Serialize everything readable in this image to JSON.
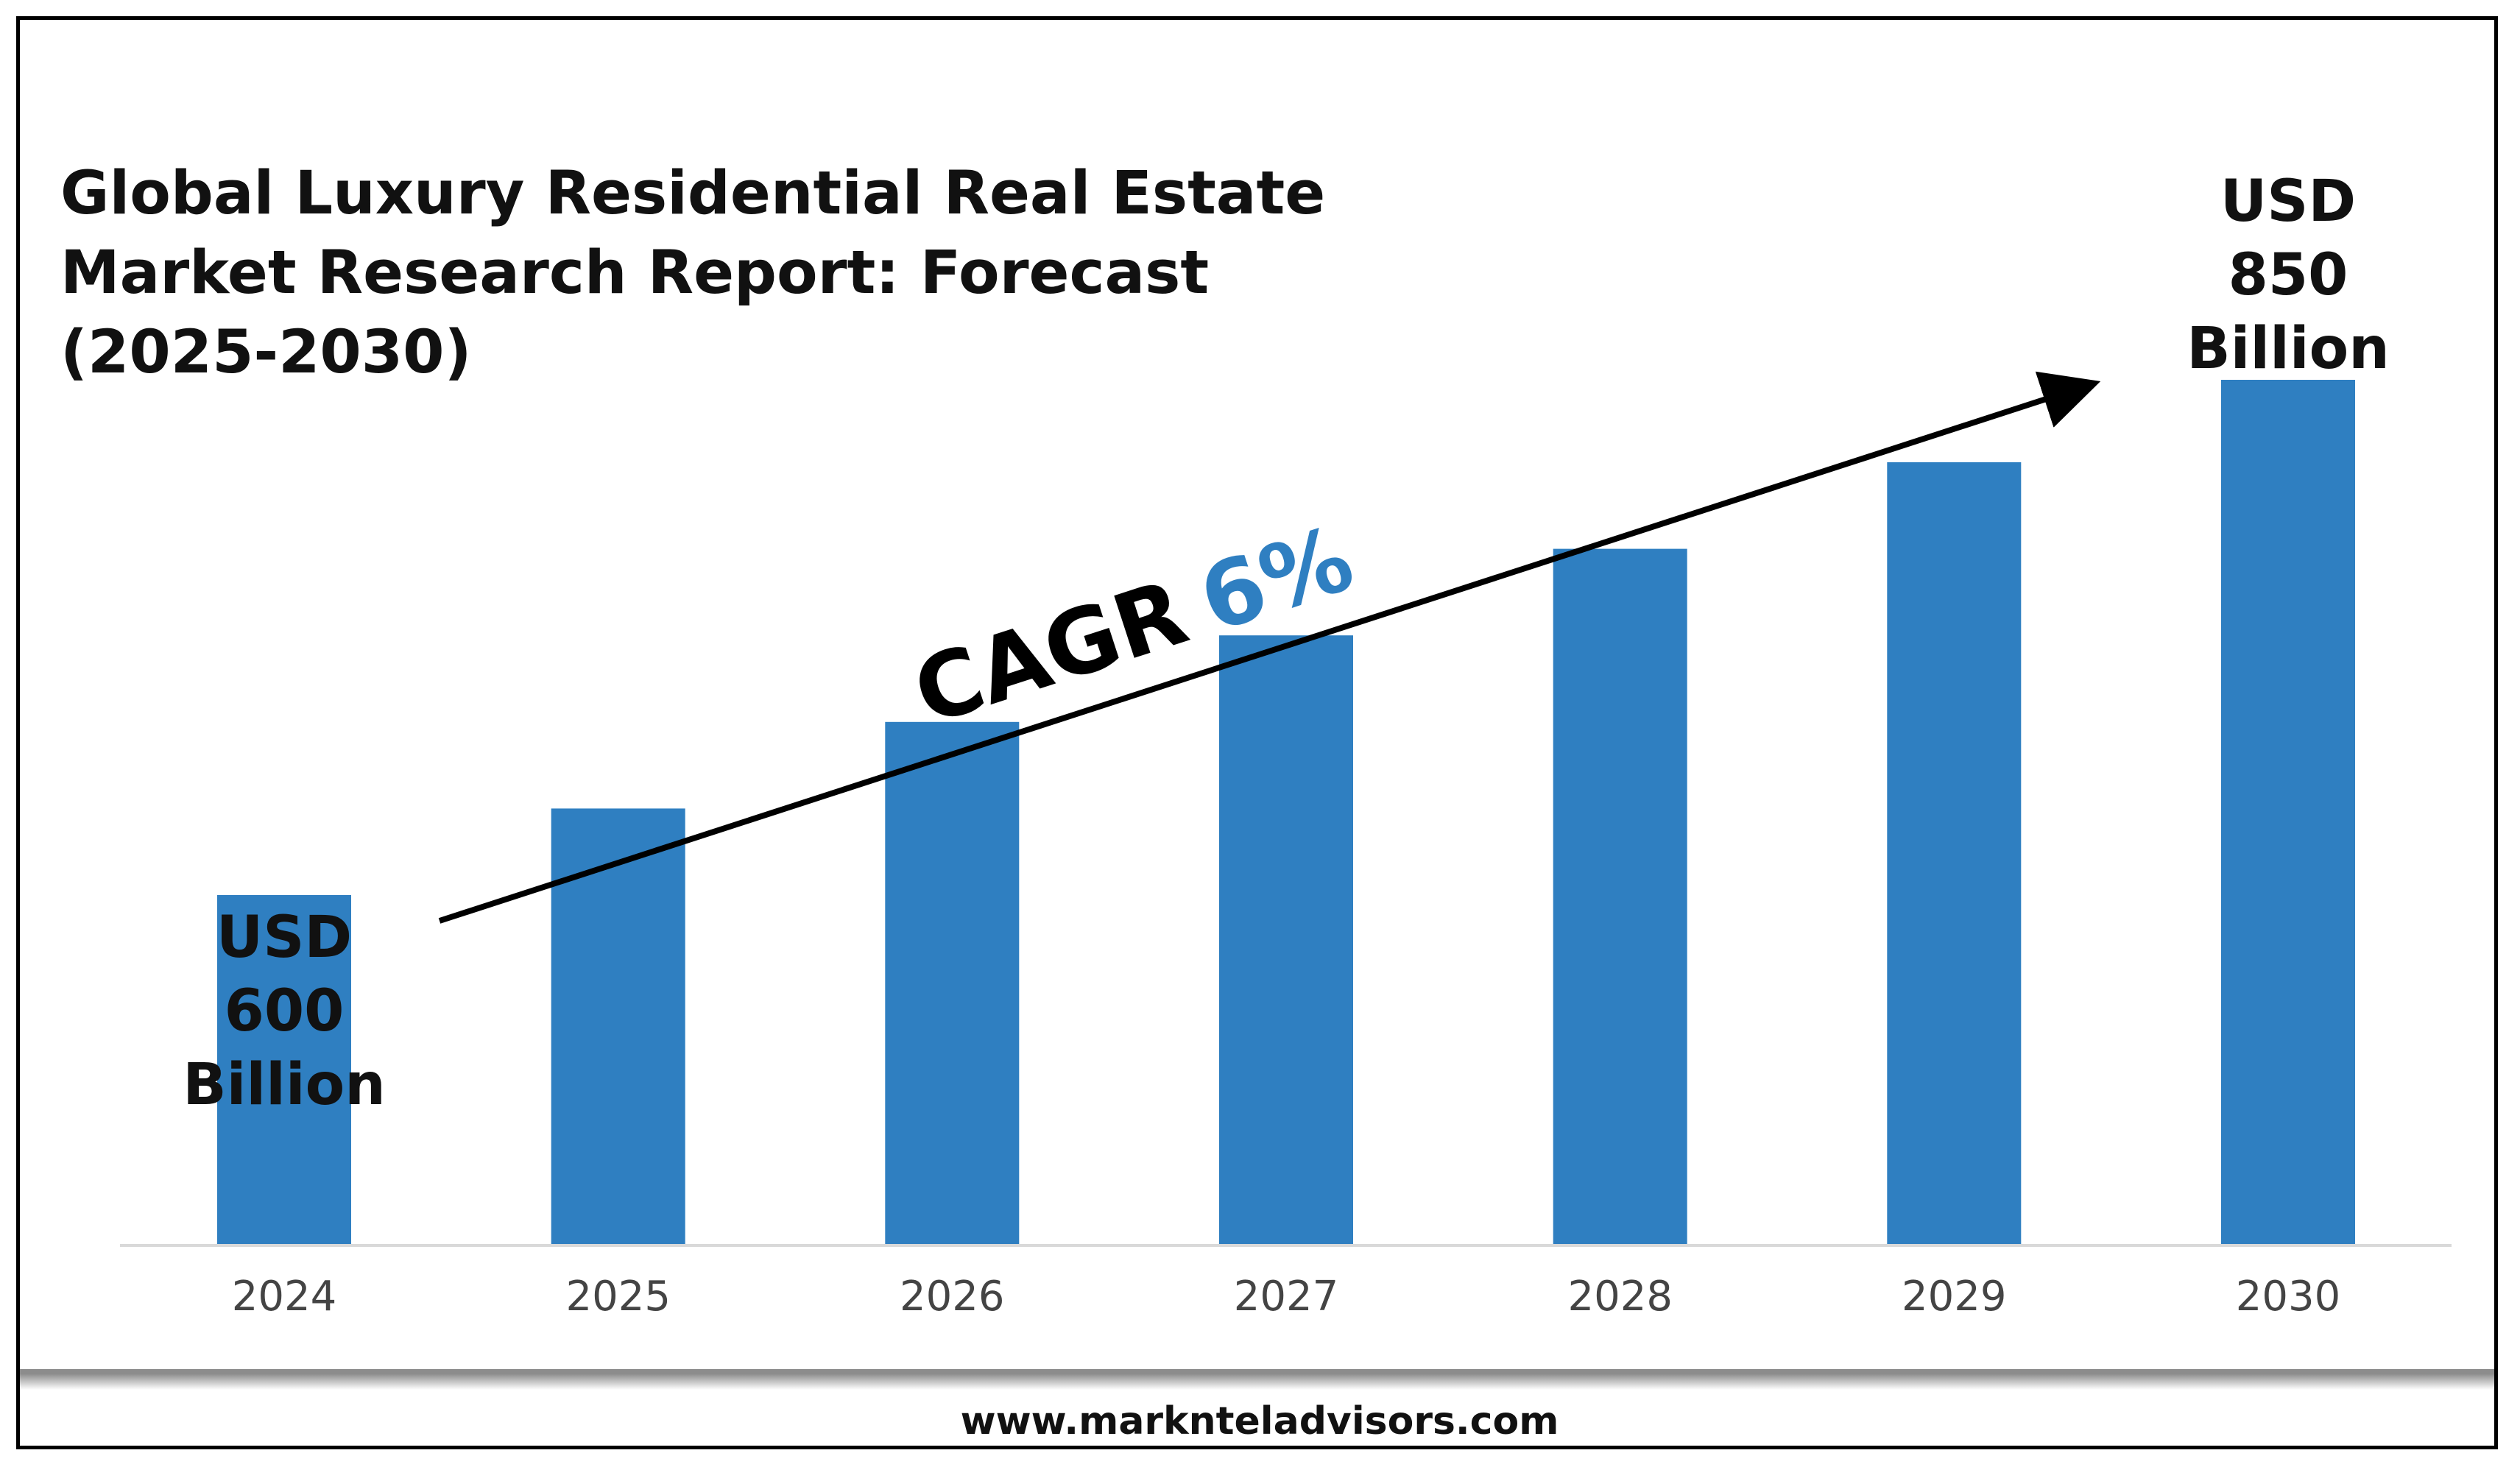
{
  "chart_data": {
    "type": "bar",
    "title_lines": [
      "Global Luxury Residential Real Estate",
      "Market Research Report: Forecast",
      "(2025-2030)"
    ],
    "categories": [
      "2024",
      "2025",
      "2026",
      "2027",
      "2028",
      "2029",
      "2030"
    ],
    "values": [
      600,
      642,
      684,
      726,
      768,
      810,
      850
    ],
    "unit": "USD Billion",
    "ylim": [
      430,
      860
    ],
    "grid": false,
    "legend": "none",
    "bar_color": "#2F7FC1",
    "annotations": {
      "start_label_lines": [
        "USD",
        "600",
        "Billion"
      ],
      "end_label_lines": [
        "USD",
        "850",
        "Billion"
      ],
      "cagr_prefix": "CAGR",
      "cagr_value": "6%",
      "cagr_color": "#2F7FC1"
    }
  },
  "footer": {
    "url": "www.marknteladvisors.com"
  }
}
